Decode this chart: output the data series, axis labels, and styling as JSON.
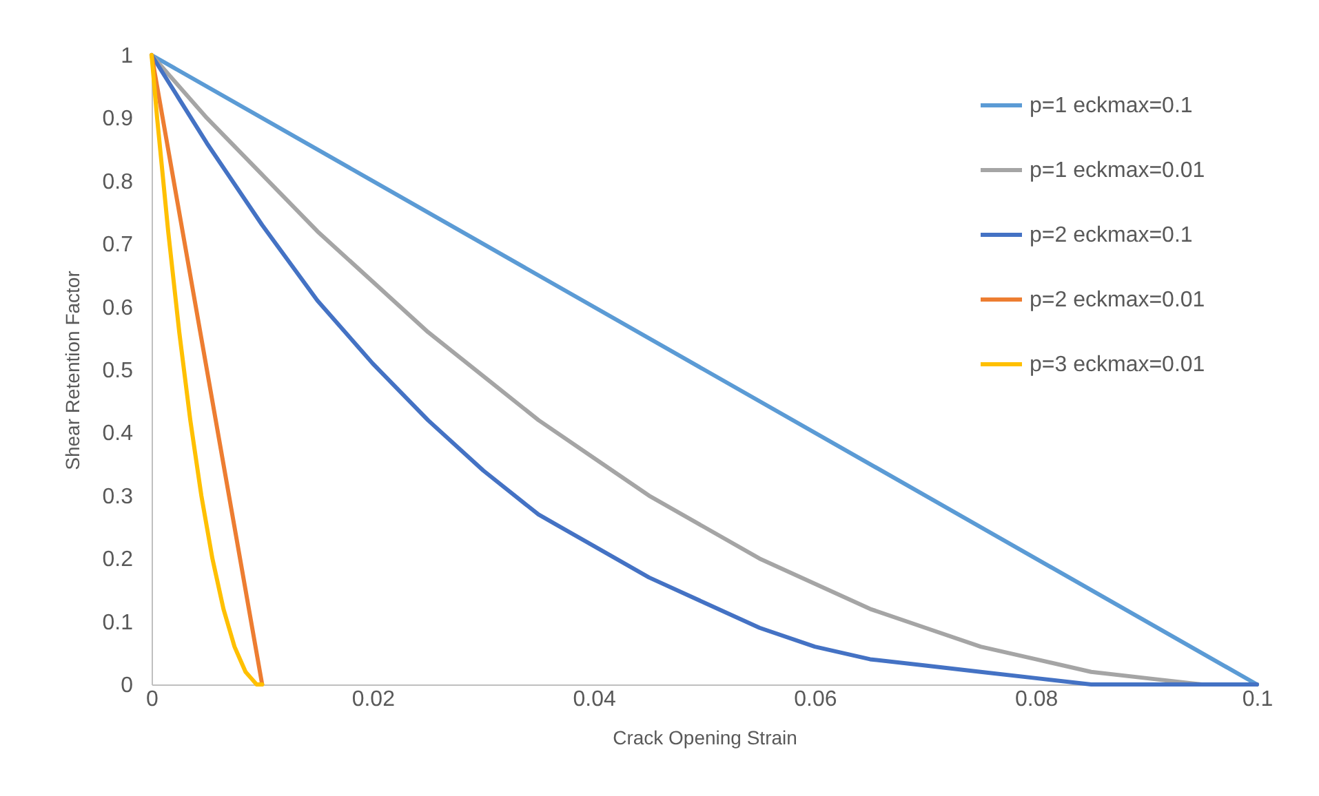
{
  "chart_data": {
    "type": "line",
    "xlabel": "Crack Opening Strain",
    "ylabel": "Shear Retention Factor",
    "xlim": [
      0,
      0.1
    ],
    "xticks": [
      0,
      0.02,
      0.04,
      0.06,
      0.08,
      0.1
    ],
    "ylim": [
      0,
      1
    ],
    "yticks": [
      0,
      0.1,
      0.2,
      0.3,
      0.4,
      0.5,
      0.6,
      0.7,
      0.8,
      0.9,
      1
    ],
    "grid": false,
    "legend": "top right",
    "marker": "none",
    "line_style": "solid",
    "series": [
      {
        "name": "p=1     eckmax=0.1",
        "color": "#5b9bd5",
        "x": [
          0,
          0.05,
          0.1
        ],
        "values": [
          1,
          0.5,
          0
        ]
      },
      {
        "name": "p=1     eckmax=0.01",
        "color": "#a5a5a5",
        "x": [
          0,
          0.005,
          0.01,
          0.015,
          0.02,
          0.025,
          0.03,
          0.035,
          0.04,
          0.045,
          0.05,
          0.055,
          0.06,
          0.065,
          0.07,
          0.075,
          0.08,
          0.085,
          0.09,
          0.095,
          0.1
        ],
        "values": [
          1,
          0.9,
          0.81,
          0.72,
          0.64,
          0.56,
          0.49,
          0.42,
          0.36,
          0.3,
          0.25,
          0.2,
          0.16,
          0.12,
          0.09,
          0.06,
          0.04,
          0.02,
          0.01,
          0,
          0
        ]
      },
      {
        "name": "p=2     eckmax=0.1",
        "color": "#4472c4",
        "x": [
          0,
          0.005,
          0.01,
          0.015,
          0.02,
          0.025,
          0.03,
          0.035,
          0.04,
          0.045,
          0.05,
          0.055,
          0.06,
          0.065,
          0.07,
          0.075,
          0.08,
          0.085,
          0.09,
          0.095,
          0.1
        ],
        "values": [
          1,
          0.86,
          0.73,
          0.61,
          0.51,
          0.42,
          0.34,
          0.27,
          0.22,
          0.17,
          0.13,
          0.09,
          0.06,
          0.04,
          0.03,
          0.02,
          0.01,
          0,
          0,
          0,
          0
        ]
      },
      {
        "name": "p=2     eckmax=0.01",
        "color": "#ed7d31",
        "x": [
          0,
          0.005,
          0.01
        ],
        "values": [
          1,
          0.5,
          0
        ]
      },
      {
        "name": "p=3     eckmax=0.01",
        "color": "#ffc000",
        "x": [
          0,
          0.0005,
          0.001,
          0.0015,
          0.002,
          0.0025,
          0.003,
          0.0035,
          0.004,
          0.0045,
          0.005,
          0.0055,
          0.006,
          0.0065,
          0.007,
          0.0075,
          0.008,
          0.0085,
          0.009,
          0.0095,
          0.01
        ],
        "values": [
          1,
          0.9,
          0.81,
          0.72,
          0.64,
          0.56,
          0.49,
          0.42,
          0.36,
          0.3,
          0.25,
          0.2,
          0.16,
          0.12,
          0.09,
          0.06,
          0.04,
          0.02,
          0.01,
          0,
          0
        ]
      }
    ]
  }
}
